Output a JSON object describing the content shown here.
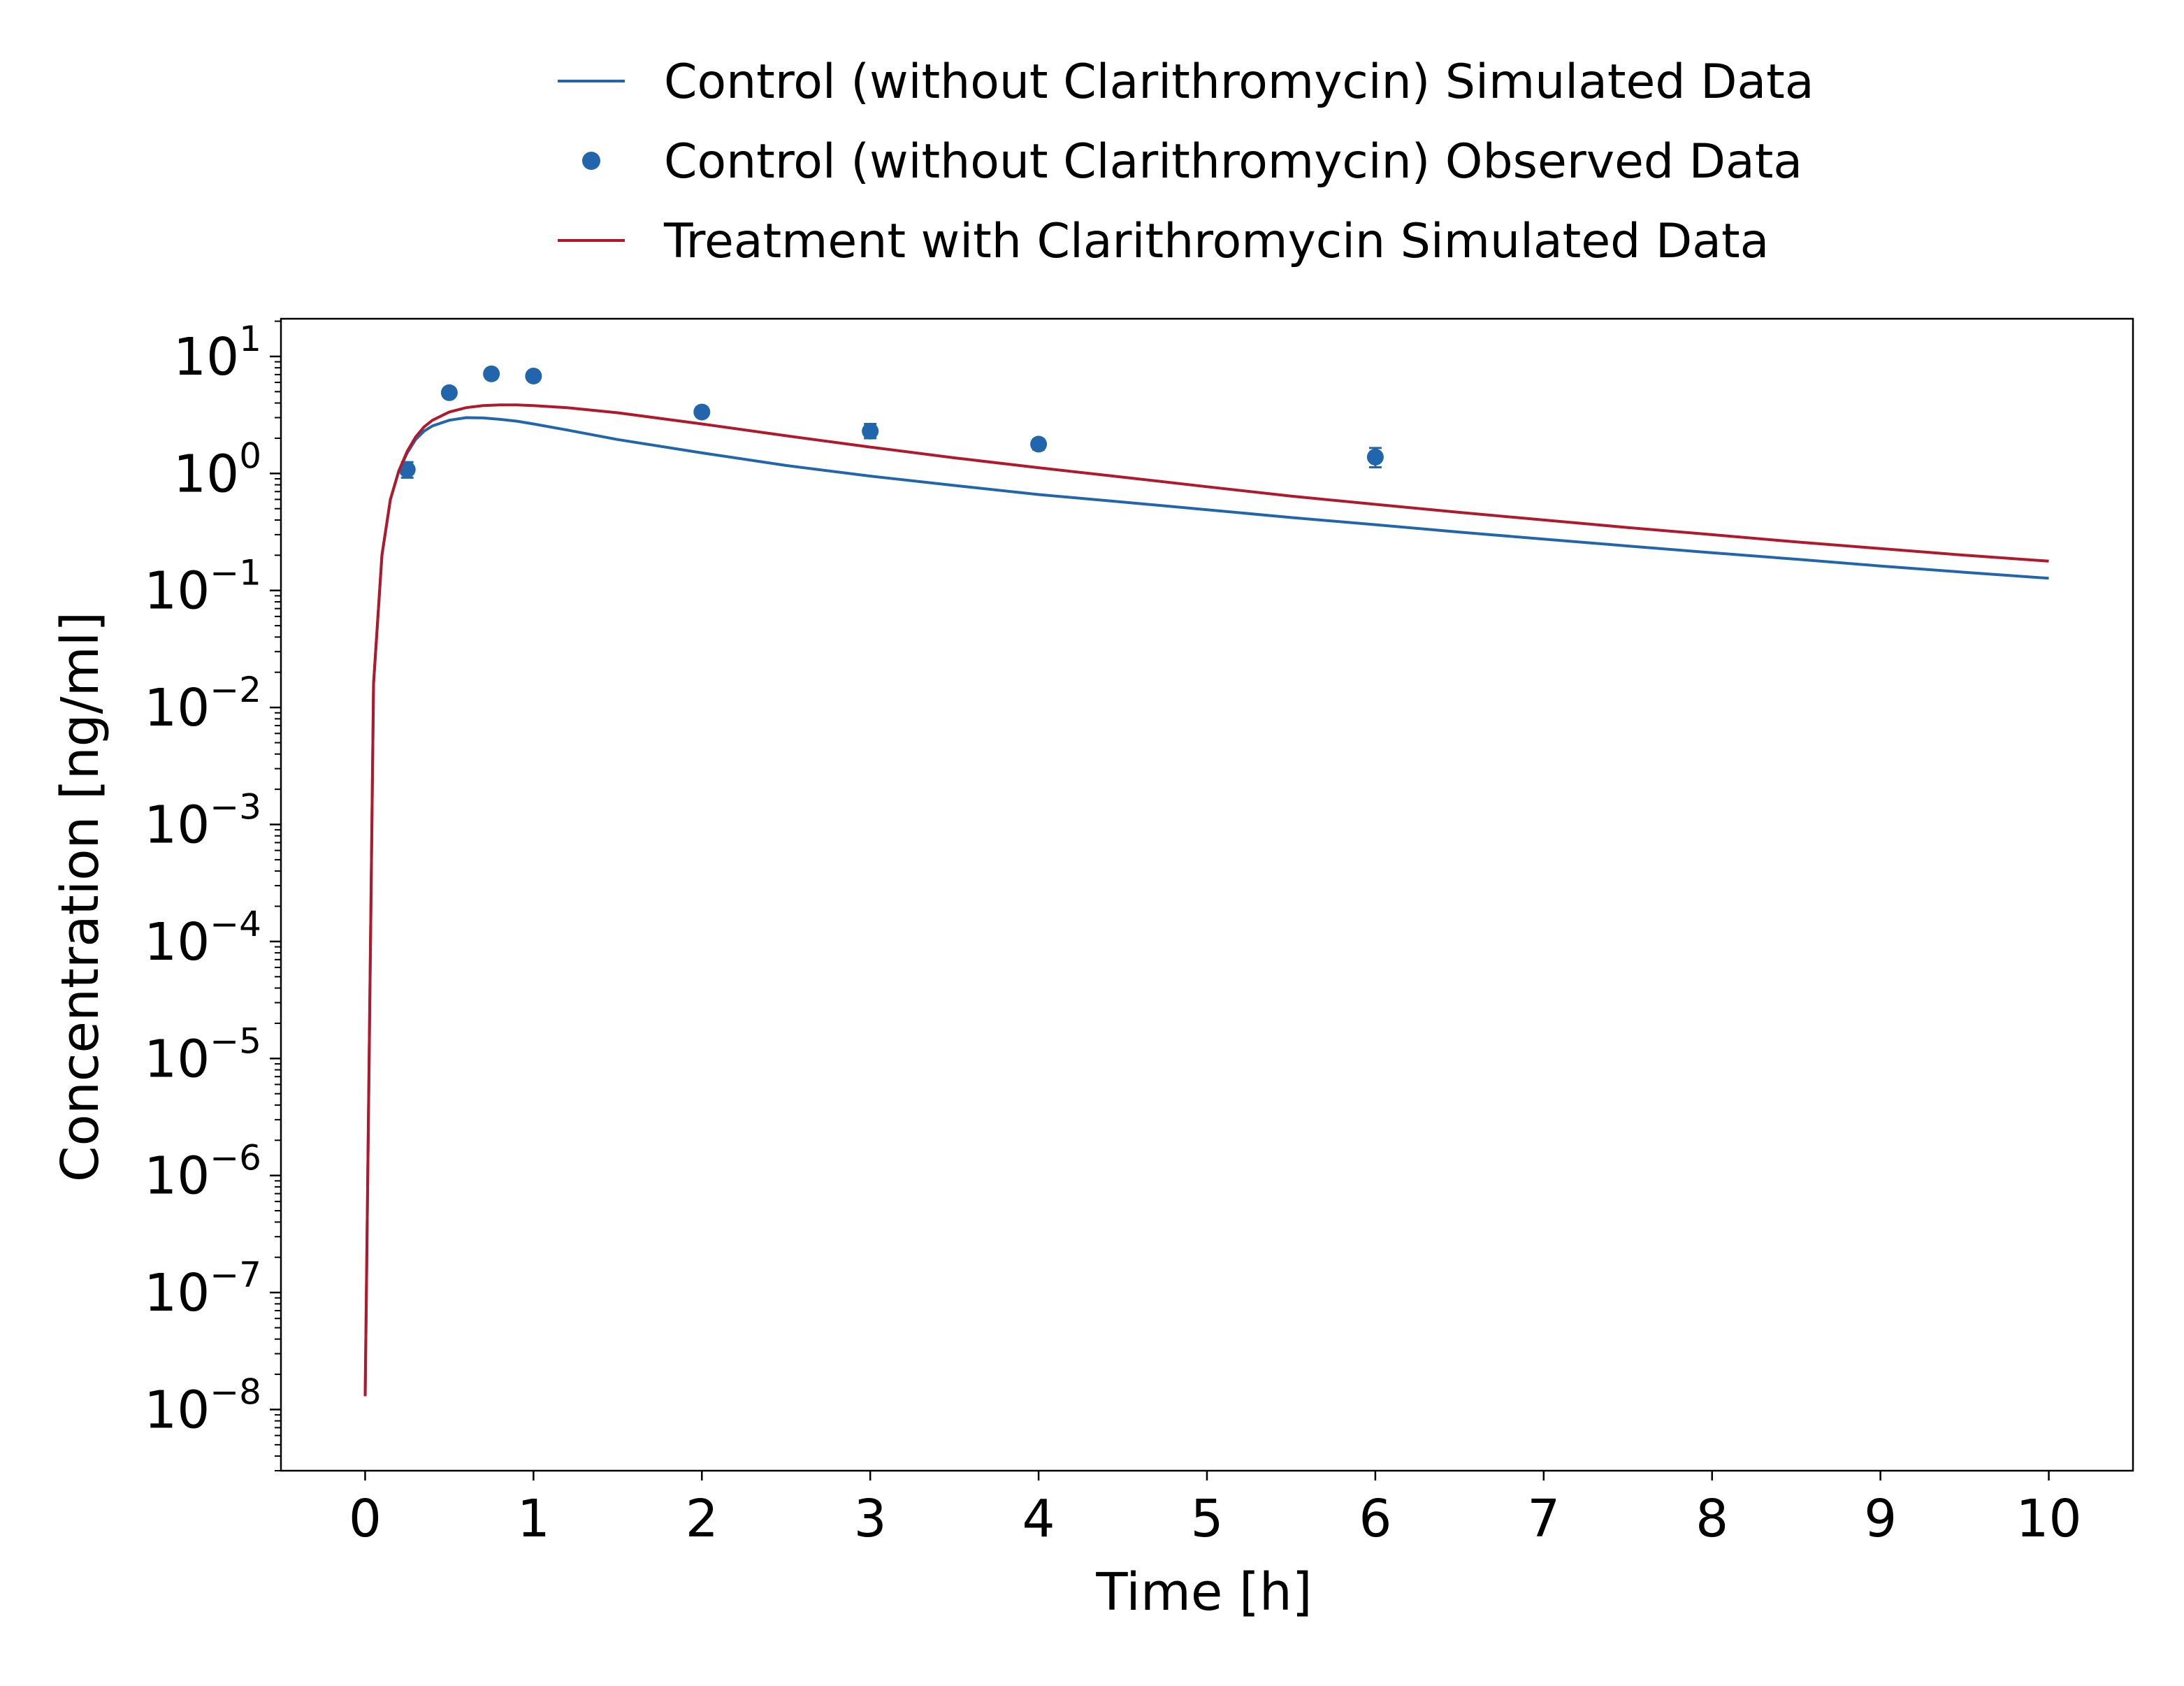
{
  "chart_data": {
    "type": "line",
    "xlabel": "Time [h]",
    "ylabel": "Concentration [ng/ml]",
    "xlim": [
      -0.5,
      10.5
    ],
    "ylim": [
      3e-09,
      21
    ],
    "yscale": "log",
    "x_ticks": [
      0,
      1,
      2,
      3,
      4,
      5,
      6,
      7,
      8,
      9,
      10
    ],
    "y_ticks": [
      {
        "value": 1e-08,
        "base": "10",
        "exp": "−8"
      },
      {
        "value": 1e-07,
        "base": "10",
        "exp": "−7"
      },
      {
        "value": 1e-06,
        "base": "10",
        "exp": "−6"
      },
      {
        "value": 1e-05,
        "base": "10",
        "exp": "−5"
      },
      {
        "value": 0.0001,
        "base": "10",
        "exp": "−4"
      },
      {
        "value": 0.001,
        "base": "10",
        "exp": "−3"
      },
      {
        "value": 0.01,
        "base": "10",
        "exp": "−2"
      },
      {
        "value": 0.1,
        "base": "10",
        "exp": "−1"
      },
      {
        "value": 1,
        "base": "10",
        "exp": "0"
      },
      {
        "value": 10,
        "base": "10",
        "exp": "1"
      }
    ],
    "grid": false,
    "legend_position": "top-center",
    "series": [
      {
        "name": "Control (without Clarithromycin) Simulated Data",
        "kind": "line",
        "color": "#2166ac",
        "x": [
          0,
          0.05,
          0.1,
          0.15,
          0.2,
          0.25,
          0.3,
          0.35,
          0.4,
          0.5,
          0.6,
          0.7,
          0.8,
          0.9,
          1.0,
          1.2,
          1.5,
          2.0,
          2.5,
          3.0,
          3.5,
          4.0,
          4.5,
          5.0,
          5.5,
          6.0,
          6.5,
          7.0,
          7.5,
          8.0,
          8.5,
          9.0,
          9.5,
          10.0
        ],
        "y": [
          1.3e-08,
          0.016,
          0.2,
          0.6,
          1.05,
          1.5,
          1.95,
          2.3,
          2.55,
          2.85,
          3.0,
          2.98,
          2.9,
          2.8,
          2.65,
          2.35,
          1.95,
          1.5,
          1.17,
          0.95,
          0.79,
          0.66,
          0.57,
          0.49,
          0.42,
          0.365,
          0.315,
          0.275,
          0.24,
          0.21,
          0.185,
          0.162,
          0.143,
          0.127
        ]
      },
      {
        "name": "Control (without Clarithromycin) Observed Data",
        "kind": "scatter",
        "color": "#2166ac",
        "x": [
          0.25,
          0.5,
          0.75,
          1.0,
          2.0,
          3.0,
          4.0,
          6.0
        ],
        "y": [
          1.08,
          4.9,
          7.1,
          6.8,
          3.35,
          2.3,
          1.78,
          1.38
        ],
        "err_low": [
          0.92,
          4.55,
          6.7,
          6.3,
          3.05,
          2.0,
          1.6,
          1.13
        ],
        "err_high": [
          1.25,
          5.3,
          7.6,
          7.3,
          3.7,
          2.65,
          1.96,
          1.65
        ]
      },
      {
        "name": "Treatment with Clarithromycin Simulated Data",
        "kind": "line",
        "color": "#b2182b",
        "x": [
          0,
          0.05,
          0.1,
          0.15,
          0.2,
          0.25,
          0.3,
          0.35,
          0.4,
          0.5,
          0.6,
          0.7,
          0.8,
          0.9,
          1.0,
          1.2,
          1.5,
          2.0,
          2.5,
          3.0,
          3.5,
          4.0,
          4.5,
          5.0,
          5.5,
          6.0,
          6.5,
          7.0,
          7.5,
          8.0,
          8.5,
          9.0,
          9.5,
          10.0
        ],
        "y": [
          1.3e-08,
          0.016,
          0.2,
          0.6,
          1.05,
          1.55,
          2.05,
          2.5,
          2.85,
          3.35,
          3.65,
          3.8,
          3.85,
          3.85,
          3.8,
          3.65,
          3.3,
          2.65,
          2.1,
          1.68,
          1.36,
          1.12,
          0.93,
          0.77,
          0.64,
          0.545,
          0.465,
          0.4,
          0.345,
          0.3,
          0.26,
          0.228,
          0.2,
          0.178
        ]
      }
    ]
  }
}
